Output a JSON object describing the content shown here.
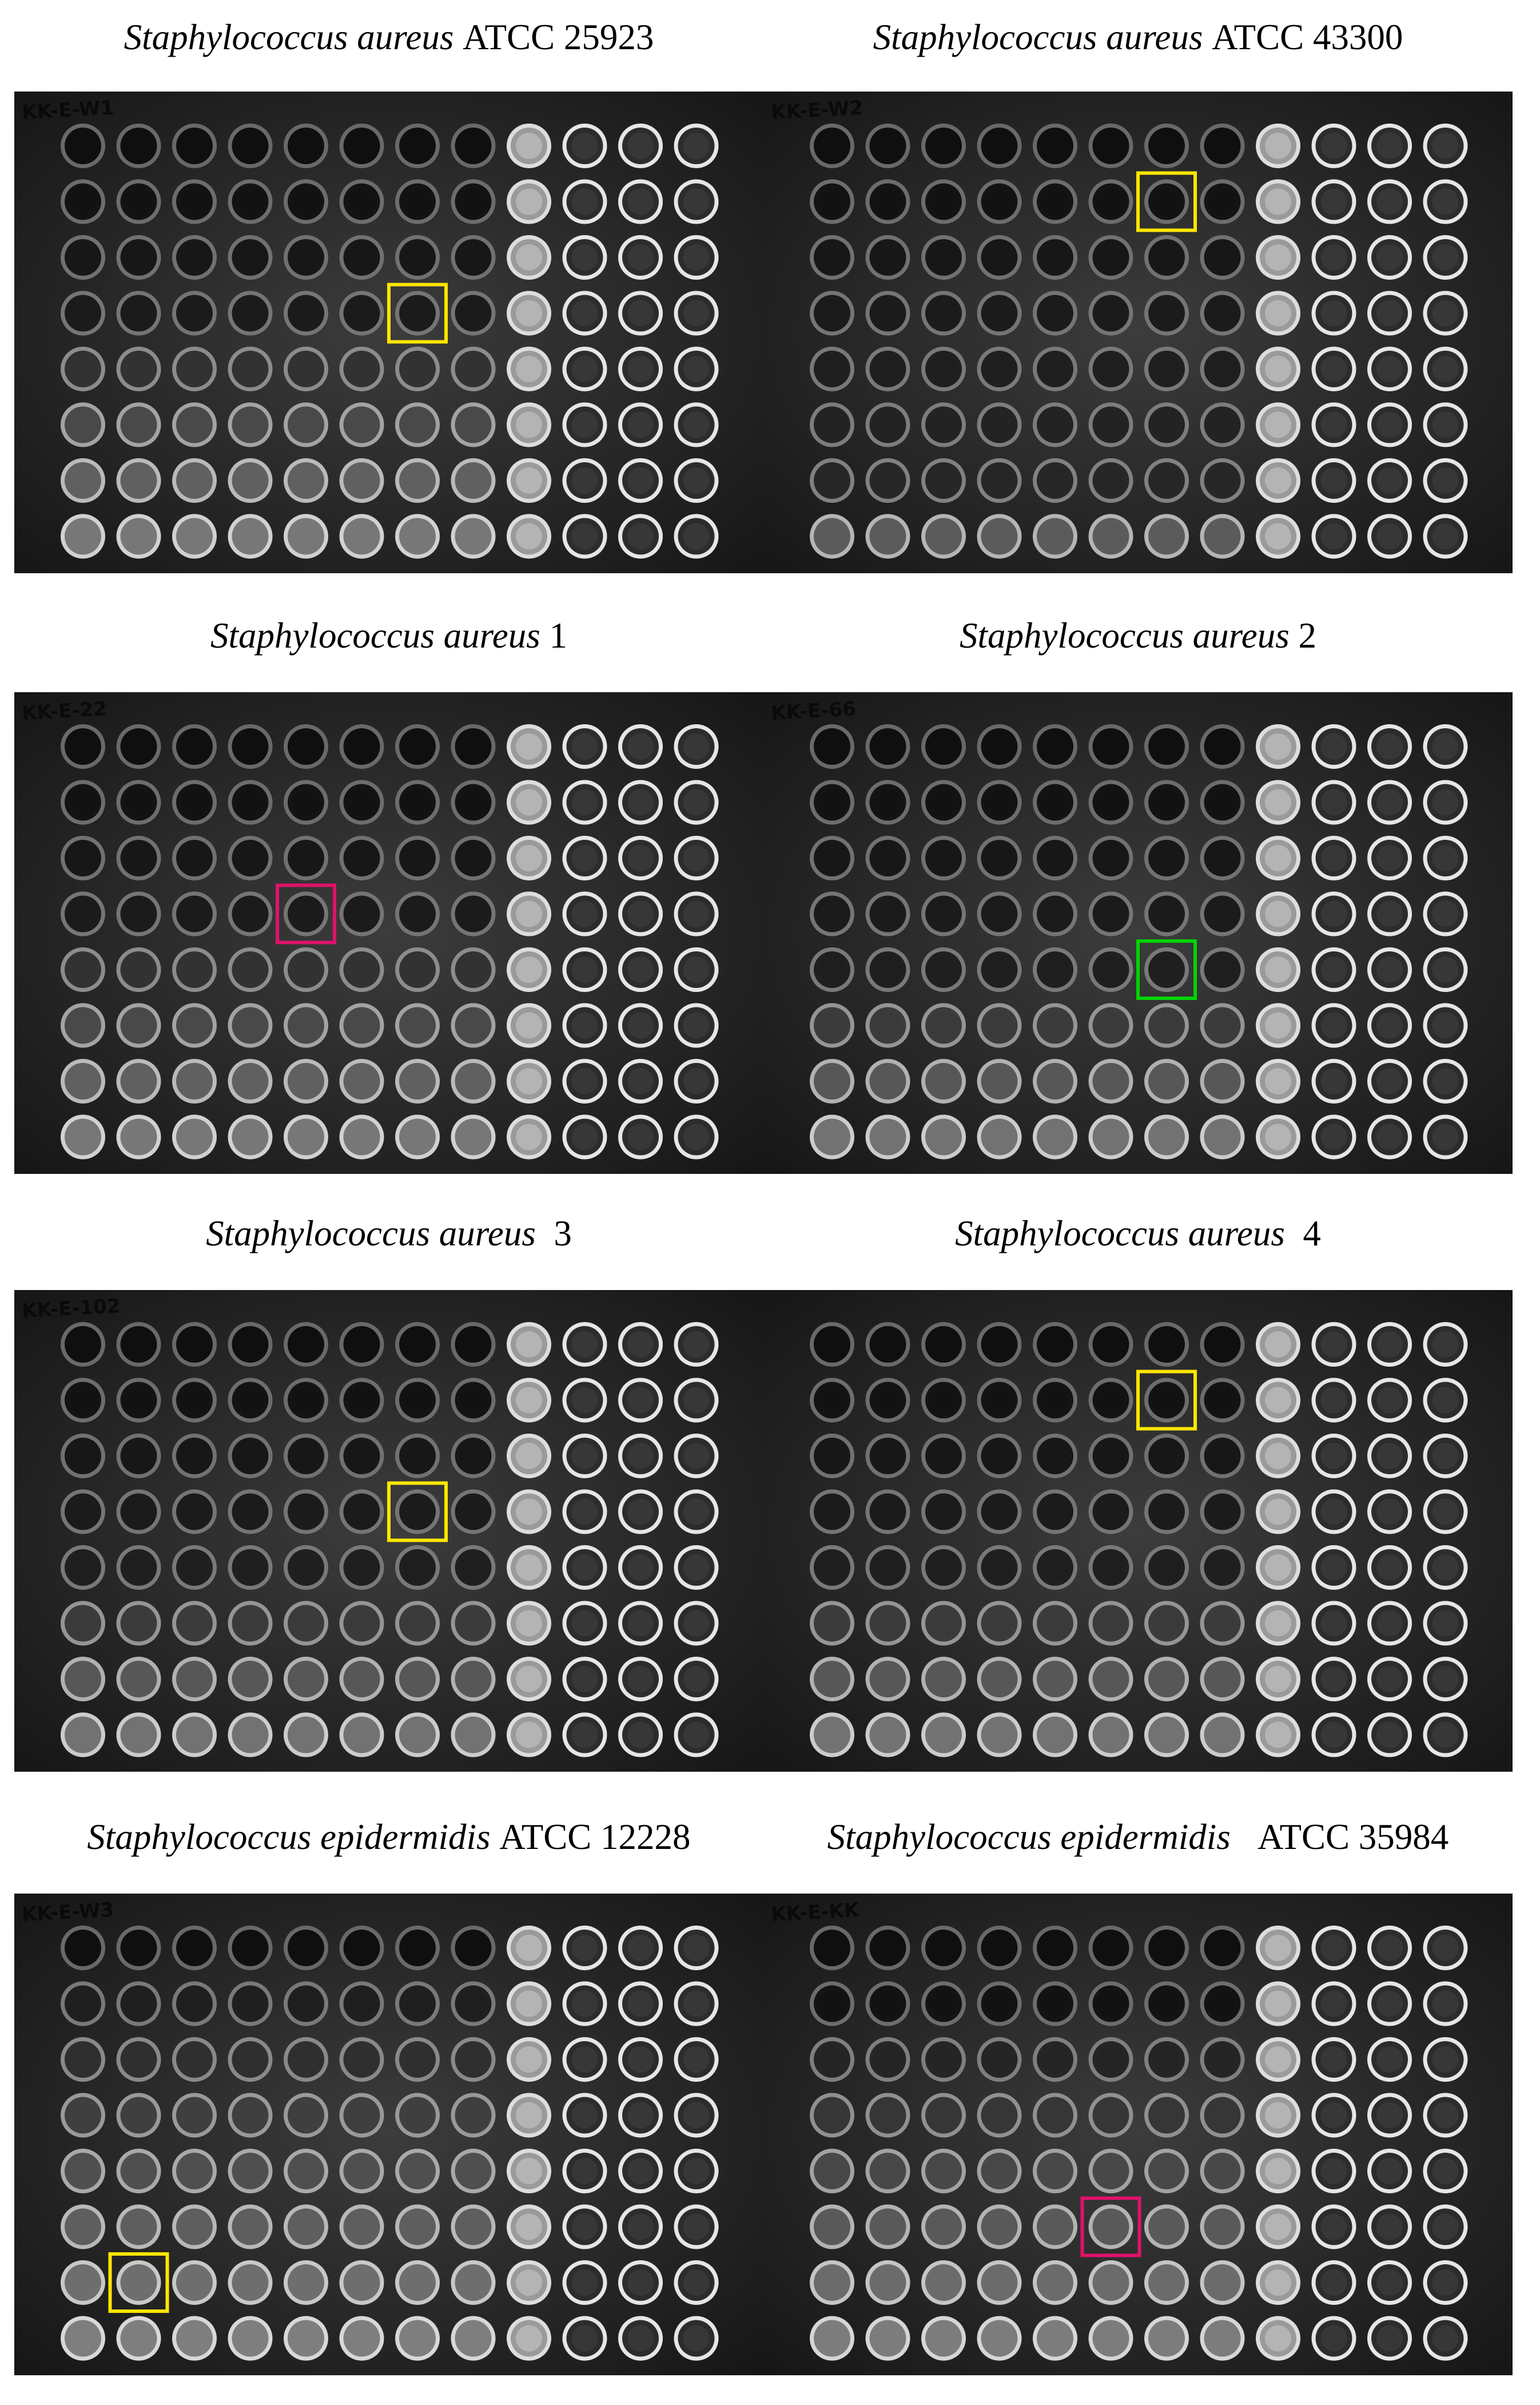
{
  "panels": [
    {
      "species": "Staphylococcus aureus",
      "strain": "ATCC 25923",
      "plate_label": "KK-E-W1",
      "highlight": {
        "row": 4,
        "col": 7,
        "color": "#ffe600"
      },
      "growth_cols": 8,
      "clear_cols": [
        9,
        10,
        11,
        12
      ],
      "translucent_col": 9,
      "fade_start_row": 5
    },
    {
      "species": "Staphylococcus aureus",
      "strain": "ATCC 43300",
      "plate_label": "KK-E-W2",
      "highlight": {
        "row": 2,
        "col": 7,
        "color": "#ffe600"
      },
      "growth_cols": 8,
      "clear_cols": [
        9,
        10,
        11,
        12
      ],
      "translucent_col": 9,
      "fade_start_row": 8
    },
    {
      "species": "Staphylococcus aureus",
      "strain": "1",
      "plate_label": "KK-E-22",
      "highlight": {
        "row": 4,
        "col": 5,
        "color": "#e0126b"
      },
      "growth_cols": 8,
      "clear_cols": [
        9,
        10,
        11,
        12
      ],
      "translucent_col": 9,
      "fade_start_row": 5
    },
    {
      "species": "Staphylococcus aureus",
      "strain": "2",
      "plate_label": "KK-E-66",
      "highlight": {
        "row": 5,
        "col": 7,
        "color": "#00d400"
      },
      "growth_cols": 8,
      "clear_cols": [
        9,
        10,
        11,
        12
      ],
      "translucent_col": 9,
      "fade_start_row": 6
    },
    {
      "species": "Staphylococcus aureus",
      "strain": "3",
      "plate_label": "KK-E-102",
      "highlight": {
        "row": 4,
        "col": 7,
        "color": "#ffe600"
      },
      "growth_cols": 8,
      "clear_cols": [
        9,
        10,
        11,
        12
      ],
      "translucent_col": 9,
      "fade_start_row": 6
    },
    {
      "species": "Staphylococcus aureus",
      "strain": "4",
      "plate_label": "",
      "highlight": {
        "row": 2,
        "col": 7,
        "color": "#ffe600"
      },
      "growth_cols": 8,
      "clear_cols": [
        9,
        10,
        11,
        12
      ],
      "translucent_col": 9,
      "fade_start_row": 6
    },
    {
      "species": "Staphylococcus epidermidis",
      "strain": "ATCC 12228",
      "plate_label": "KK-E-W3",
      "highlight": {
        "row": 7,
        "col": 2,
        "color": "#ffe600"
      },
      "growth_cols": 8,
      "clear_cols": [
        9,
        10,
        11,
        12
      ],
      "translucent_col": 9,
      "fade_start_row": 2
    },
    {
      "species": "Staphylococcus epidermidis",
      "strain": "ATCC 35984",
      "plate_label": "KK-E-KK",
      "highlight": {
        "row": 6,
        "col": 6,
        "color": "#e0126b"
      },
      "growth_cols": 8,
      "clear_cols": [
        9,
        10,
        11,
        12
      ],
      "translucent_col": 9,
      "fade_start_row": 3
    }
  ]
}
